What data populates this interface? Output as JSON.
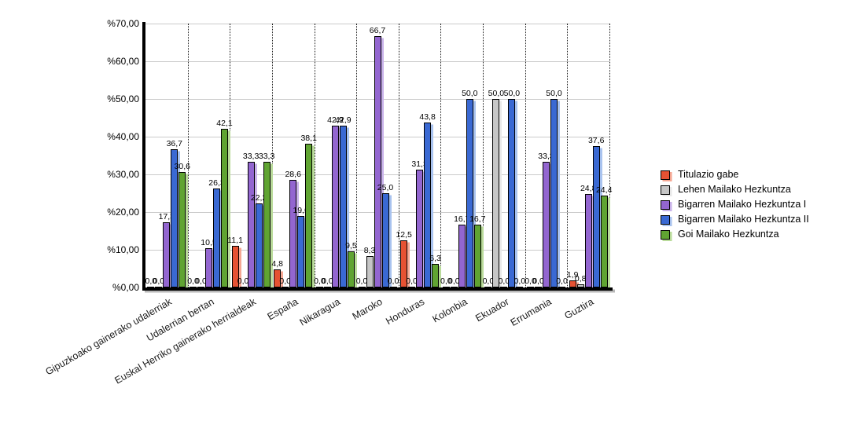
{
  "chart_data": {
    "type": "bar",
    "title": "",
    "xlabel": "",
    "ylabel": "",
    "ylim": [
      0,
      70
    ],
    "y_tick_step": 10,
    "y_tick_labels": [
      "%0,00",
      "%10,00",
      "%20,00",
      "%30,00",
      "%40,00",
      "%50,00",
      "%60,00",
      "%70,00"
    ],
    "grid": true,
    "legend_position": "right",
    "value_label_format": "one-decimal-comma",
    "categories": [
      "Gipuzkoako gainerako udalerriak",
      "Udalerrian bertan",
      "Euskal Herriko gainerako herrialdeak",
      "España",
      "Nikaragua",
      "Maroko",
      "Honduras",
      "Kolonbia",
      "Ekuador",
      "Errumania",
      "Guztira"
    ],
    "series": [
      {
        "name": "Titulazio gabe",
        "color": "#e65233",
        "shadow_color": "#f5a894",
        "values": [
          0.0,
          0.0,
          11.1,
          4.8,
          0.0,
          0.0,
          12.5,
          0.0,
          0.0,
          0.0,
          1.9
        ]
      },
      {
        "name": "Lehen Mailako Hezkuntza",
        "color": "#c6c6c6",
        "shadow_color": "#e9e9e9",
        "values": [
          0.0,
          0.0,
          0.0,
          0.0,
          0.0,
          8.3,
          0.0,
          0.0,
          50.0,
          0.0,
          0.8
        ]
      },
      {
        "name": "Bigarren Mailako Hezkuntza I",
        "color": "#9366d0",
        "shadow_color": "#cab4ea",
        "values": [
          17.3,
          10.5,
          33.3,
          28.6,
          42.9,
          66.7,
          31.3,
          16.7,
          0.0,
          33.3,
          24.8
        ]
      },
      {
        "name": "Bigarren Mailako Hezkuntza II",
        "color": "#3a69d3",
        "shadow_color": "#a9c3ef",
        "values": [
          36.7,
          26.3,
          22.2,
          19.0,
          42.9,
          25.0,
          43.8,
          50.0,
          50.0,
          50.0,
          37.6
        ]
      },
      {
        "name": "Goi Mailako Hezkuntza",
        "color": "#60a432",
        "shadow_color": "#badb9b",
        "values": [
          30.6,
          42.1,
          33.3,
          38.1,
          9.5,
          0.0,
          6.3,
          16.7,
          0.0,
          0.0,
          24.4
        ]
      }
    ]
  }
}
